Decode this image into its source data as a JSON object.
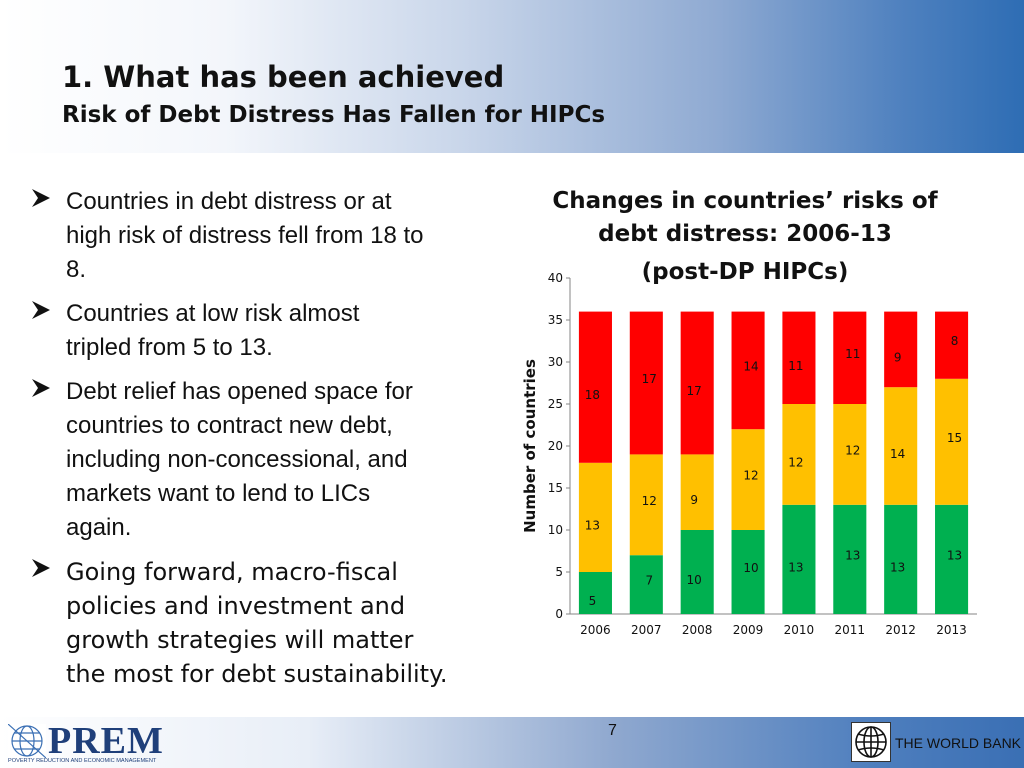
{
  "slide": {
    "title": "1. What has been achieved",
    "subtitle": "Risk of Debt Distress Has Fallen for HIPCs",
    "page_number": "7"
  },
  "bullets": [
    {
      "text_lines": [
        "Countries in debt distress or at",
        "high risk of distress fell from 18 to",
        "8."
      ]
    },
    {
      "text_lines": [
        "Countries at low risk almost",
        "tripled from 5 to 13."
      ]
    },
    {
      "text_lines": [
        "Debt relief has opened space for",
        "countries to contract new debt,",
        "including non-concessional, and",
        "markets want to lend to LICs",
        "again."
      ]
    },
    {
      "text_lines": [
        "Going forward, macro-fiscal",
        "policies and investment and",
        "growth strategies will matter",
        "the most for debt sustainability."
      ]
    }
  ],
  "footer": {
    "prem_name": "PREM",
    "prem_tagline": "POVERTY REDUCTION AND ECONOMIC MANAGEMENT",
    "world_bank": "THE WORLD BANK"
  },
  "colors": {
    "low": "#00b050",
    "moderate": "#ffc000",
    "high": "#ff0000",
    "header_accent": "#2e6db4"
  },
  "icons": [
    "arrow-bullet-icon",
    "prem-globe-icon",
    "world-bank-globe-icon"
  ],
  "chart_data": {
    "type": "bar",
    "stacked": true,
    "title_lines": [
      "Changes in countries’ risks of",
      "debt distress: 2006-13",
      "(post-DP HIPCs)"
    ],
    "ylabel": "Number of countries",
    "xlabel": "",
    "ylim": [
      0,
      40
    ],
    "yticks": [
      0,
      5,
      10,
      15,
      20,
      25,
      30,
      35,
      40
    ],
    "grid": false,
    "legend": "none",
    "categories": [
      "2006",
      "2007",
      "2008",
      "2009",
      "2010",
      "2011",
      "2012",
      "2013"
    ],
    "series": [
      {
        "values": [
          5,
          7,
          10,
          10,
          13,
          13,
          13,
          13
        ],
        "color": "#00b050"
      },
      {
        "values": [
          13,
          12,
          9,
          12,
          12,
          12,
          14,
          15
        ],
        "color": "#ffc000"
      },
      {
        "values": [
          18,
          17,
          17,
          14,
          11,
          11,
          9,
          8
        ],
        "color": "#ff0000"
      }
    ]
  }
}
